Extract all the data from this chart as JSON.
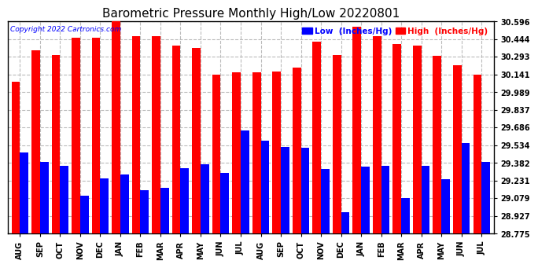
{
  "title": "Barometric Pressure Monthly High/Low 20220801",
  "copyright": "Copyright 2022 Cartronics.com",
  "legend_low_label": "Low  (Inches/Hg)",
  "legend_high_label": "High  (Inches/Hg)",
  "categories": [
    "AUG",
    "SEP",
    "OCT",
    "NOV",
    "DEC",
    "JAN",
    "FEB",
    "MAR",
    "APR",
    "MAY",
    "JUN",
    "JUL",
    "AUG",
    "SEP",
    "OCT",
    "NOV",
    "DEC",
    "JAN",
    "FEB",
    "MAR",
    "APR",
    "MAY",
    "JUN",
    "JUL"
  ],
  "high_values": [
    30.08,
    30.35,
    30.31,
    30.46,
    30.46,
    30.63,
    30.47,
    30.47,
    30.39,
    30.37,
    30.14,
    30.16,
    30.16,
    30.17,
    30.2,
    30.42,
    30.31,
    30.55,
    30.47,
    30.4,
    30.39,
    30.3,
    30.22,
    30.14
  ],
  "low_values": [
    29.47,
    29.39,
    29.36,
    29.1,
    29.25,
    29.28,
    29.15,
    29.17,
    29.34,
    29.37,
    29.3,
    29.66,
    29.57,
    29.52,
    29.51,
    29.33,
    28.96,
    29.35,
    29.36,
    29.08,
    29.36,
    29.24,
    29.55,
    29.39
  ],
  "high_color": "#FF0000",
  "low_color": "#0000FF",
  "background_color": "#FFFFFF",
  "ylim_min": 28.775,
  "ylim_max": 30.596,
  "yticks": [
    28.775,
    28.927,
    29.079,
    29.231,
    29.382,
    29.534,
    29.686,
    29.837,
    29.989,
    30.141,
    30.293,
    30.444,
    30.596
  ],
  "grid_color": "#BBBBBB",
  "title_fontsize": 11,
  "tick_fontsize": 7,
  "bar_width": 0.42
}
